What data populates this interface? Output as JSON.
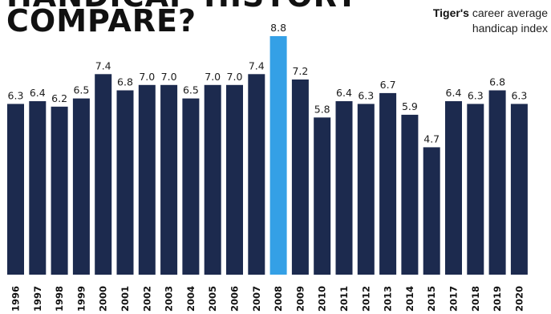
{
  "header": {
    "title_line1": "HANDICAP HISTORY",
    "title_line2": "COMPARE?",
    "subtitle_bold": "Tiger's",
    "subtitle_rest": " career average",
    "subtitle_line2": "handicap index"
  },
  "chart_data": {
    "type": "bar",
    "categories": [
      "1996",
      "1997",
      "1998",
      "1999",
      "2000",
      "2001",
      "2002",
      "2003",
      "2004",
      "2005",
      "2006",
      "2007",
      "2008",
      "2009",
      "2010",
      "2011",
      "2012",
      "2013",
      "2014",
      "2015",
      "2017",
      "2018",
      "2019",
      "2020"
    ],
    "values": [
      6.3,
      6.4,
      6.2,
      6.5,
      7.4,
      6.8,
      7.0,
      7.0,
      6.5,
      7.0,
      7.0,
      7.4,
      8.8,
      7.2,
      5.8,
      6.4,
      6.3,
      6.7,
      5.9,
      4.7,
      6.4,
      6.3,
      6.8,
      6.3
    ],
    "value_labels": [
      "6.3",
      "6.4",
      "6.2",
      "6.5",
      "7.4",
      "6.8",
      "7.0",
      "7.0",
      "6.5",
      "7.0",
      "7.0",
      "7.4",
      "8.8",
      "7.2",
      "5.8",
      "6.4",
      "6.3",
      "6.7",
      "5.9",
      "4.7",
      "6.4",
      "6.3",
      "6.8",
      "6.3"
    ],
    "highlight_category": "2008",
    "colors": {
      "bar": "#1c2a4e",
      "highlight": "#34a0e6"
    },
    "ylim": [
      0,
      8.8
    ],
    "grid": false,
    "legend": "none"
  }
}
